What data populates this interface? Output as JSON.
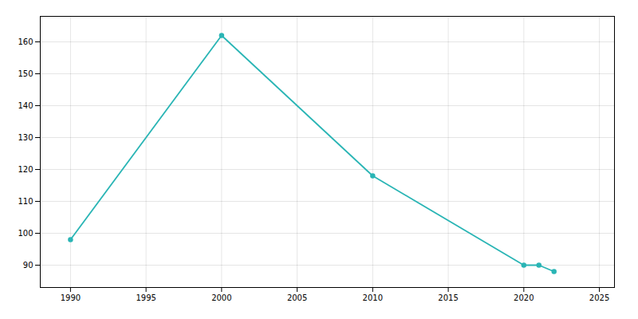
{
  "chart_data": {
    "type": "line",
    "x": [
      1990,
      2000,
      2010,
      2020,
      2021,
      2022
    ],
    "values": [
      98,
      162,
      118,
      90,
      90,
      88
    ],
    "color": "#2ab5b5",
    "marker": "circle",
    "xlim": [
      1988,
      2026
    ],
    "ylim": [
      83,
      168
    ],
    "xticks": [
      1990,
      1995,
      2000,
      2005,
      2010,
      2015,
      2020,
      2025
    ],
    "yticks": [
      90,
      100,
      110,
      120,
      130,
      140,
      150,
      160
    ],
    "grid": true
  }
}
